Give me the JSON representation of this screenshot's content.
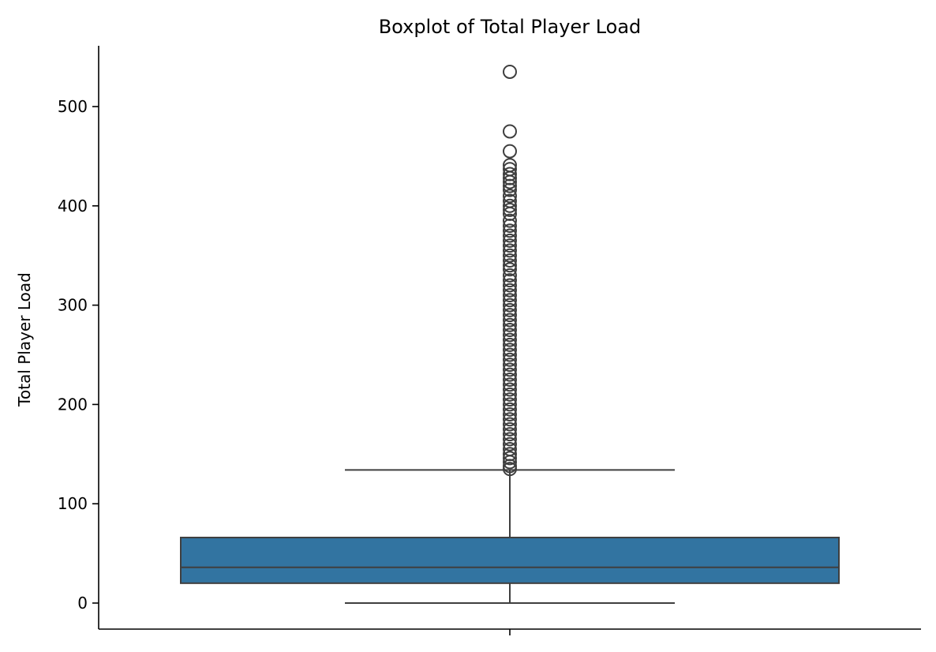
{
  "chart_data": {
    "type": "box",
    "title": "Boxplot of Total Player Load",
    "xlabel": "",
    "ylabel": "Total Player Load",
    "ylim": [
      -26,
      562
    ],
    "yticks": [
      0,
      100,
      200,
      300,
      400,
      500
    ],
    "grid": false,
    "box": {
      "whisker_low": 0,
      "q1": 20,
      "median": 36,
      "q3": 66,
      "whisker_high": 134
    },
    "outliers": [
      535,
      475,
      455,
      441,
      437,
      432,
      428,
      424,
      420,
      416,
      410,
      405,
      400,
      396,
      392,
      385,
      380,
      375,
      370,
      365,
      360,
      355,
      350,
      345,
      340,
      336,
      330,
      325,
      320,
      315,
      310,
      305,
      300,
      295,
      290,
      285,
      280,
      275,
      270,
      265,
      260,
      255,
      250,
      245,
      240,
      235,
      230,
      225,
      220,
      215,
      210,
      205,
      200,
      195,
      190,
      185,
      180,
      175,
      170,
      165,
      160,
      155,
      150,
      146,
      142,
      138,
      135
    ],
    "colors": {
      "box_fill": "#3274a1",
      "line": "#3f3f3f"
    }
  }
}
